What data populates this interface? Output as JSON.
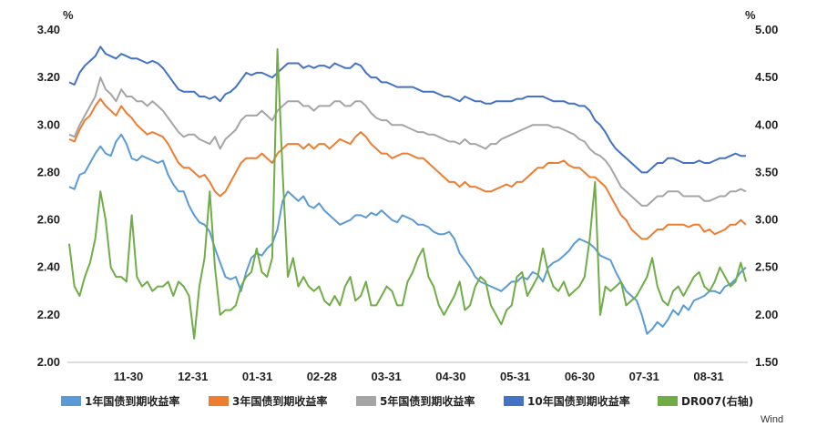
{
  "chart_data": {
    "type": "line",
    "left_axis": {
      "unit": "%",
      "ylim": [
        2.0,
        3.4
      ],
      "ticks": [
        "2.00",
        "2.20",
        "2.40",
        "2.60",
        "2.80",
        "3.00",
        "3.20",
        "3.40"
      ]
    },
    "right_axis": {
      "unit": "%",
      "ylim": [
        1.5,
        5.0
      ],
      "ticks": [
        "1.50",
        "2.00",
        "2.50",
        "3.00",
        "3.50",
        "4.00",
        "4.50",
        "5.00"
      ]
    },
    "x_tick_labels": [
      "11-30",
      "12-31",
      "01-31",
      "02-28",
      "03-31",
      "04-30",
      "05-31",
      "06-30",
      "07-31",
      "08-31"
    ],
    "grid": false,
    "legend_position": "bottom",
    "source_text": "Wind",
    "series": [
      {
        "name": "1年国债到期收益率",
        "color": "#5B9BD5",
        "axis": "left",
        "values": [
          2.74,
          2.73,
          2.79,
          2.8,
          2.84,
          2.88,
          2.91,
          2.88,
          2.87,
          2.93,
          2.96,
          2.92,
          2.86,
          2.85,
          2.87,
          2.86,
          2.85,
          2.84,
          2.85,
          2.79,
          2.75,
          2.72,
          2.72,
          2.66,
          2.62,
          2.59,
          2.58,
          2.55,
          2.48,
          2.42,
          2.36,
          2.35,
          2.36,
          2.3,
          2.38,
          2.44,
          2.46,
          2.45,
          2.48,
          2.5,
          2.56,
          2.68,
          2.72,
          2.7,
          2.68,
          2.7,
          2.66,
          2.65,
          2.67,
          2.64,
          2.62,
          2.6,
          2.58,
          2.59,
          2.6,
          2.62,
          2.62,
          2.61,
          2.63,
          2.62,
          2.64,
          2.62,
          2.6,
          2.59,
          2.62,
          2.61,
          2.6,
          2.58,
          2.58,
          2.57,
          2.55,
          2.54,
          2.54,
          2.55,
          2.52,
          2.46,
          2.43,
          2.4,
          2.36,
          2.34,
          2.33,
          2.32,
          2.31,
          2.3,
          2.32,
          2.34,
          2.34,
          2.36,
          2.35,
          2.38,
          2.37,
          2.34,
          2.4,
          2.42,
          2.43,
          2.45,
          2.47,
          2.5,
          2.52,
          2.51,
          2.5,
          2.48,
          2.45,
          2.44,
          2.43,
          2.38,
          2.34,
          2.3,
          2.28,
          2.26,
          2.2,
          2.12,
          2.14,
          2.17,
          2.15,
          2.18,
          2.22,
          2.2,
          2.24,
          2.22,
          2.26,
          2.27,
          2.28,
          2.3,
          2.3,
          2.29,
          2.32,
          2.33,
          2.35,
          2.38,
          2.4
        ]
      },
      {
        "name": "3年国债到期收益率",
        "color": "#ED7D31",
        "axis": "left",
        "values": [
          2.94,
          2.93,
          2.98,
          3.02,
          3.04,
          3.08,
          3.11,
          3.08,
          3.06,
          3.04,
          3.08,
          3.05,
          3.03,
          3.0,
          2.98,
          2.96,
          2.97,
          2.96,
          2.95,
          2.92,
          2.88,
          2.84,
          2.82,
          2.82,
          2.8,
          2.78,
          2.79,
          2.76,
          2.72,
          2.7,
          2.72,
          2.76,
          2.8,
          2.84,
          2.86,
          2.86,
          2.86,
          2.88,
          2.86,
          2.84,
          2.88,
          2.9,
          2.92,
          2.92,
          2.92,
          2.9,
          2.92,
          2.9,
          2.92,
          2.92,
          2.9,
          2.92,
          2.94,
          2.93,
          2.92,
          2.95,
          2.97,
          2.95,
          2.92,
          2.9,
          2.88,
          2.88,
          2.86,
          2.87,
          2.88,
          2.88,
          2.87,
          2.86,
          2.86,
          2.84,
          2.82,
          2.8,
          2.78,
          2.76,
          2.76,
          2.74,
          2.76,
          2.74,
          2.74,
          2.73,
          2.72,
          2.72,
          2.73,
          2.74,
          2.75,
          2.74,
          2.76,
          2.76,
          2.78,
          2.8,
          2.82,
          2.82,
          2.84,
          2.84,
          2.84,
          2.85,
          2.83,
          2.82,
          2.82,
          2.8,
          2.78,
          2.78,
          2.76,
          2.74,
          2.7,
          2.66,
          2.62,
          2.6,
          2.56,
          2.54,
          2.52,
          2.52,
          2.54,
          2.56,
          2.56,
          2.58,
          2.58,
          2.58,
          2.58,
          2.57,
          2.58,
          2.58,
          2.55,
          2.56,
          2.54,
          2.55,
          2.56,
          2.58,
          2.58,
          2.6,
          2.58
        ]
      },
      {
        "name": "5年国债到期收益率",
        "color": "#A5A5A5",
        "axis": "left",
        "values": [
          2.96,
          2.95,
          3.0,
          3.04,
          3.08,
          3.12,
          3.2,
          3.15,
          3.13,
          3.1,
          3.15,
          3.12,
          3.12,
          3.1,
          3.1,
          3.08,
          3.1,
          3.08,
          3.06,
          3.03,
          3.0,
          2.97,
          2.95,
          2.96,
          2.96,
          2.94,
          2.93,
          2.92,
          2.95,
          2.9,
          2.94,
          2.96,
          2.98,
          3.02,
          3.04,
          3.04,
          3.04,
          3.06,
          3.04,
          3.02,
          3.06,
          3.08,
          3.1,
          3.1,
          3.1,
          3.08,
          3.08,
          3.06,
          3.08,
          3.08,
          3.08,
          3.1,
          3.1,
          3.08,
          3.08,
          3.1,
          3.1,
          3.08,
          3.05,
          3.03,
          3.02,
          3.02,
          3.0,
          3.0,
          3.0,
          2.99,
          2.98,
          2.97,
          2.97,
          2.96,
          2.96,
          2.95,
          2.94,
          2.93,
          2.93,
          2.92,
          2.94,
          2.92,
          2.92,
          2.91,
          2.9,
          2.92,
          2.92,
          2.94,
          2.95,
          2.96,
          2.97,
          2.98,
          2.99,
          3.0,
          3.0,
          3.0,
          3.0,
          2.99,
          2.99,
          2.98,
          2.97,
          2.96,
          2.94,
          2.93,
          2.9,
          2.88,
          2.87,
          2.85,
          2.82,
          2.78,
          2.74,
          2.72,
          2.7,
          2.68,
          2.66,
          2.66,
          2.68,
          2.7,
          2.7,
          2.72,
          2.72,
          2.72,
          2.7,
          2.7,
          2.7,
          2.7,
          2.68,
          2.68,
          2.69,
          2.7,
          2.7,
          2.72,
          2.72,
          2.73,
          2.72
        ]
      },
      {
        "name": "10年国债到期收益率",
        "color": "#4472C4",
        "axis": "left",
        "values": [
          3.18,
          3.17,
          3.22,
          3.25,
          3.27,
          3.29,
          3.33,
          3.3,
          3.29,
          3.28,
          3.3,
          3.29,
          3.28,
          3.28,
          3.27,
          3.26,
          3.27,
          3.26,
          3.24,
          3.21,
          3.18,
          3.15,
          3.14,
          3.14,
          3.14,
          3.12,
          3.12,
          3.11,
          3.12,
          3.1,
          3.13,
          3.14,
          3.16,
          3.19,
          3.22,
          3.21,
          3.22,
          3.22,
          3.21,
          3.2,
          3.22,
          3.24,
          3.26,
          3.26,
          3.26,
          3.24,
          3.25,
          3.24,
          3.25,
          3.25,
          3.24,
          3.26,
          3.25,
          3.24,
          3.24,
          3.26,
          3.25,
          3.22,
          3.2,
          3.2,
          3.18,
          3.18,
          3.17,
          3.16,
          3.16,
          3.16,
          3.16,
          3.15,
          3.14,
          3.14,
          3.14,
          3.13,
          3.12,
          3.12,
          3.11,
          3.1,
          3.12,
          3.11,
          3.1,
          3.1,
          3.09,
          3.09,
          3.1,
          3.1,
          3.1,
          3.1,
          3.11,
          3.11,
          3.12,
          3.12,
          3.12,
          3.12,
          3.11,
          3.1,
          3.1,
          3.1,
          3.09,
          3.09,
          3.08,
          3.08,
          3.06,
          3.02,
          3.0,
          2.97,
          2.93,
          2.9,
          2.88,
          2.86,
          2.84,
          2.82,
          2.8,
          2.8,
          2.82,
          2.84,
          2.84,
          2.86,
          2.86,
          2.85,
          2.84,
          2.84,
          2.84,
          2.85,
          2.84,
          2.84,
          2.85,
          2.86,
          2.86,
          2.87,
          2.88,
          2.87,
          2.87
        ]
      },
      {
        "name": "DR007(右轴)",
        "color": "#70AD47",
        "axis": "right",
        "values": [
          2.75,
          2.3,
          2.2,
          2.4,
          2.55,
          2.8,
          3.3,
          3.0,
          2.5,
          2.4,
          2.4,
          2.35,
          3.05,
          2.4,
          2.3,
          2.35,
          2.25,
          2.3,
          2.3,
          2.35,
          2.2,
          2.35,
          2.3,
          2.2,
          1.75,
          2.3,
          2.6,
          3.3,
          2.5,
          2.0,
          2.05,
          2.05,
          2.1,
          2.3,
          2.4,
          2.45,
          2.7,
          2.45,
          2.4,
          2.6,
          4.8,
          3.5,
          2.4,
          2.6,
          2.3,
          2.4,
          2.3,
          2.25,
          2.3,
          2.15,
          2.1,
          2.2,
          2.1,
          2.3,
          2.4,
          2.15,
          2.2,
          2.35,
          2.1,
          2.1,
          2.2,
          2.3,
          2.25,
          2.1,
          2.1,
          2.35,
          2.45,
          2.6,
          2.7,
          2.4,
          2.3,
          2.1,
          2.0,
          2.1,
          2.2,
          2.35,
          2.05,
          2.1,
          2.3,
          2.4,
          2.35,
          2.1,
          2.0,
          1.9,
          2.05,
          2.1,
          2.4,
          2.45,
          2.2,
          2.3,
          2.4,
          2.7,
          2.45,
          2.3,
          2.25,
          2.35,
          2.2,
          2.25,
          2.3,
          2.4,
          2.8,
          3.4,
          2.0,
          2.3,
          2.25,
          2.3,
          2.35,
          2.1,
          2.15,
          2.2,
          2.3,
          2.4,
          2.6,
          2.3,
          2.15,
          2.1,
          2.25,
          2.3,
          2.2,
          2.3,
          2.4,
          2.45,
          2.3,
          2.25,
          2.35,
          2.5,
          2.4,
          2.3,
          2.35,
          2.55,
          2.35
        ]
      }
    ]
  }
}
